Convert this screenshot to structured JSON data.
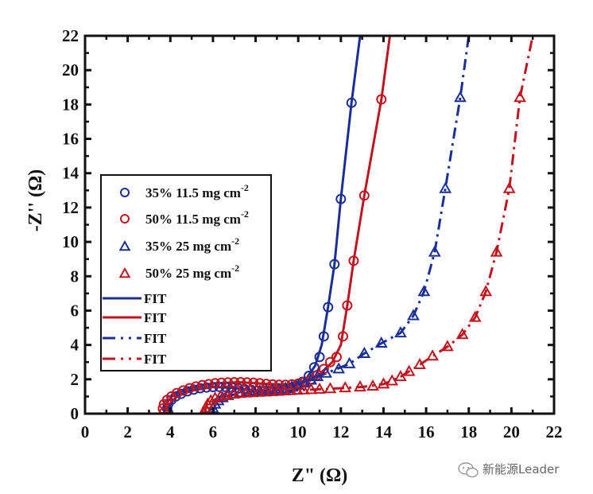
{
  "chart_data": {
    "type": "scatter",
    "title": "",
    "xlabel": "Z\" (Ω)",
    "ylabel": "-Z'' (Ω)",
    "xlim": [
      0,
      22
    ],
    "ylim": [
      0,
      22
    ],
    "xticks": [
      "0",
      "2",
      "4",
      "6",
      "8",
      "10",
      "12",
      "14",
      "16",
      "18",
      "20",
      "22"
    ],
    "yticks": [
      "0",
      "2",
      "4",
      "6",
      "8",
      "10",
      "12",
      "14",
      "16",
      "18",
      "20",
      "22"
    ],
    "grid": false,
    "legend_position": "center-left",
    "series": [
      {
        "name": "35% 11.5 mg cm-2",
        "label_main": "35% 11.5 mg cm",
        "label_sup": "-2",
        "kind": "marker",
        "marker": "circle",
        "color": "#1a2f96",
        "points": [
          [
            3.9,
            0.05
          ],
          [
            3.85,
            0.3
          ],
          [
            3.9,
            0.55
          ],
          [
            4.05,
            0.8
          ],
          [
            4.25,
            1.0
          ],
          [
            4.5,
            1.15
          ],
          [
            4.8,
            1.3
          ],
          [
            5.1,
            1.4
          ],
          [
            5.4,
            1.48
          ],
          [
            5.7,
            1.52
          ],
          [
            6.0,
            1.55
          ],
          [
            6.3,
            1.56
          ],
          [
            6.6,
            1.55
          ],
          [
            6.9,
            1.52
          ],
          [
            7.2,
            1.47
          ],
          [
            7.5,
            1.42
          ],
          [
            7.8,
            1.37
          ],
          [
            8.1,
            1.33
          ],
          [
            8.4,
            1.3
          ],
          [
            8.7,
            1.3
          ],
          [
            9.0,
            1.32
          ],
          [
            9.3,
            1.38
          ],
          [
            9.6,
            1.48
          ],
          [
            9.9,
            1.62
          ],
          [
            10.2,
            1.85
          ],
          [
            10.5,
            2.2
          ],
          [
            10.75,
            2.7
          ],
          [
            11.0,
            3.3
          ],
          [
            11.2,
            4.5
          ],
          [
            11.4,
            6.2
          ],
          [
            11.7,
            8.7
          ],
          [
            12.0,
            12.5
          ],
          [
            12.5,
            18.1
          ]
        ]
      },
      {
        "name": "50% 11.5 mg cm-2",
        "label_main": "50% 11.5 mg cm",
        "label_sup": "-2",
        "kind": "marker",
        "marker": "circle",
        "color": "#c0151f",
        "points": [
          [
            3.7,
            0.05
          ],
          [
            3.65,
            0.3
          ],
          [
            3.7,
            0.55
          ],
          [
            3.85,
            0.8
          ],
          [
            4.05,
            1.0
          ],
          [
            4.3,
            1.2
          ],
          [
            4.6,
            1.35
          ],
          [
            4.9,
            1.48
          ],
          [
            5.2,
            1.58
          ],
          [
            5.5,
            1.66
          ],
          [
            5.8,
            1.72
          ],
          [
            6.1,
            1.77
          ],
          [
            6.4,
            1.8
          ],
          [
            6.7,
            1.82
          ],
          [
            7.0,
            1.83
          ],
          [
            7.3,
            1.83
          ],
          [
            7.6,
            1.82
          ],
          [
            7.9,
            1.8
          ],
          [
            8.2,
            1.77
          ],
          [
            8.5,
            1.73
          ],
          [
            8.8,
            1.7
          ],
          [
            9.1,
            1.68
          ],
          [
            9.4,
            1.68
          ],
          [
            9.7,
            1.7
          ],
          [
            10.0,
            1.75
          ],
          [
            10.3,
            1.85
          ],
          [
            10.6,
            2.0
          ],
          [
            10.9,
            2.25
          ],
          [
            11.2,
            2.6
          ],
          [
            11.5,
            3.0
          ],
          [
            11.8,
            3.3
          ],
          [
            12.1,
            4.5
          ],
          [
            12.3,
            6.3
          ],
          [
            12.6,
            8.9
          ],
          [
            13.1,
            12.7
          ],
          [
            13.9,
            18.3
          ]
        ]
      },
      {
        "name": "35% 25 mg cm-2",
        "label_main": "35% 25 mg cm",
        "label_sup": "-2",
        "kind": "marker",
        "marker": "triangle",
        "color": "#1a2f96",
        "points": [
          [
            5.95,
            0.05
          ],
          [
            6.0,
            0.3
          ],
          [
            6.1,
            0.55
          ],
          [
            6.25,
            0.75
          ],
          [
            6.45,
            0.92
          ],
          [
            6.7,
            1.05
          ],
          [
            7.0,
            1.15
          ],
          [
            7.3,
            1.22
          ],
          [
            7.6,
            1.28
          ],
          [
            7.9,
            1.3
          ],
          [
            8.2,
            1.32
          ],
          [
            8.5,
            1.35
          ],
          [
            8.8,
            1.38
          ],
          [
            9.1,
            1.42
          ],
          [
            9.4,
            1.48
          ],
          [
            9.7,
            1.55
          ],
          [
            10.0,
            1.65
          ],
          [
            10.3,
            1.78
          ],
          [
            10.6,
            1.95
          ],
          [
            10.9,
            2.15
          ],
          [
            11.3,
            2.35
          ],
          [
            11.9,
            2.6
          ],
          [
            12.4,
            2.9
          ],
          [
            13.1,
            3.5
          ],
          [
            13.9,
            4.1
          ],
          [
            14.8,
            4.7
          ],
          [
            15.4,
            5.7
          ],
          [
            15.9,
            7.1
          ],
          [
            16.4,
            9.4
          ],
          [
            16.9,
            13.1
          ],
          [
            17.6,
            18.4
          ]
        ]
      },
      {
        "name": "50% 25 mg cm-2",
        "label_main": "50% 25 mg cm",
        "label_sup": "-2",
        "kind": "marker",
        "marker": "triangle",
        "color": "#c0151f",
        "points": [
          [
            5.6,
            0.05
          ],
          [
            5.65,
            0.3
          ],
          [
            5.75,
            0.55
          ],
          [
            5.9,
            0.75
          ],
          [
            6.1,
            0.9
          ],
          [
            6.35,
            1.0
          ],
          [
            6.65,
            1.08
          ],
          [
            6.95,
            1.14
          ],
          [
            7.25,
            1.18
          ],
          [
            7.55,
            1.2
          ],
          [
            7.85,
            1.22
          ],
          [
            8.15,
            1.24
          ],
          [
            8.45,
            1.26
          ],
          [
            8.75,
            1.28
          ],
          [
            9.05,
            1.3
          ],
          [
            9.35,
            1.32
          ],
          [
            9.65,
            1.34
          ],
          [
            9.95,
            1.36
          ],
          [
            10.25,
            1.38
          ],
          [
            10.6,
            1.4
          ],
          [
            11.0,
            1.42
          ],
          [
            11.5,
            1.45
          ],
          [
            12.2,
            1.5
          ],
          [
            12.9,
            1.55
          ],
          [
            13.5,
            1.6
          ],
          [
            14.0,
            1.72
          ],
          [
            14.4,
            1.9
          ],
          [
            14.8,
            2.15
          ],
          [
            15.2,
            2.45
          ],
          [
            15.7,
            2.85
          ],
          [
            16.3,
            3.35
          ],
          [
            17.0,
            3.9
          ],
          [
            17.7,
            4.6
          ],
          [
            18.3,
            5.6
          ],
          [
            18.8,
            7.1
          ],
          [
            19.3,
            9.4
          ],
          [
            19.9,
            13.1
          ],
          [
            20.4,
            18.4
          ]
        ]
      },
      {
        "name": "FIT",
        "kind": "line",
        "style": "solid",
        "color": "#1a2f96",
        "points": [
          [
            3.9,
            0.0
          ],
          [
            3.95,
            0.5
          ],
          [
            4.3,
            1.0
          ],
          [
            5.0,
            1.35
          ],
          [
            6.0,
            1.55
          ],
          [
            7.0,
            1.5
          ],
          [
            8.0,
            1.35
          ],
          [
            8.8,
            1.3
          ],
          [
            9.6,
            1.48
          ],
          [
            10.3,
            1.9
          ],
          [
            10.8,
            2.8
          ],
          [
            11.1,
            4.0
          ],
          [
            11.4,
            6.2
          ],
          [
            11.7,
            8.7
          ],
          [
            12.0,
            12.5
          ],
          [
            12.5,
            18.1
          ],
          [
            12.9,
            22.0
          ]
        ]
      },
      {
        "name": "FIT",
        "kind": "line",
        "style": "solid",
        "color": "#c0151f",
        "points": [
          [
            3.7,
            0.0
          ],
          [
            3.75,
            0.5
          ],
          [
            4.1,
            1.05
          ],
          [
            4.9,
            1.48
          ],
          [
            6.0,
            1.76
          ],
          [
            7.2,
            1.83
          ],
          [
            8.4,
            1.74
          ],
          [
            9.4,
            1.68
          ],
          [
            10.3,
            1.85
          ],
          [
            11.0,
            2.3
          ],
          [
            11.6,
            3.0
          ],
          [
            12.0,
            4.0
          ],
          [
            12.3,
            6.3
          ],
          [
            12.6,
            8.9
          ],
          [
            13.1,
            12.7
          ],
          [
            13.9,
            18.3
          ],
          [
            14.3,
            22.0
          ]
        ]
      },
      {
        "name": "FIT",
        "kind": "line",
        "style": "dashdot",
        "color": "#1a2f96",
        "points": [
          [
            6.0,
            0.0
          ],
          [
            6.1,
            0.5
          ],
          [
            6.6,
            1.0
          ],
          [
            7.5,
            1.25
          ],
          [
            8.5,
            1.35
          ],
          [
            9.5,
            1.5
          ],
          [
            10.5,
            1.9
          ],
          [
            11.3,
            2.35
          ],
          [
            12.4,
            2.9
          ],
          [
            13.1,
            3.5
          ],
          [
            13.9,
            4.1
          ],
          [
            14.8,
            4.7
          ],
          [
            15.4,
            5.7
          ],
          [
            15.9,
            7.1
          ],
          [
            16.4,
            9.4
          ],
          [
            16.9,
            13.1
          ],
          [
            17.6,
            18.4
          ],
          [
            18.0,
            22.0
          ]
        ]
      },
      {
        "name": "FIT",
        "kind": "line",
        "style": "dashdot",
        "color": "#c0151f",
        "points": [
          [
            5.6,
            0.0
          ],
          [
            5.7,
            0.5
          ],
          [
            6.2,
            0.95
          ],
          [
            7.2,
            1.17
          ],
          [
            8.5,
            1.26
          ],
          [
            10.0,
            1.36
          ],
          [
            11.5,
            1.45
          ],
          [
            13.0,
            1.55
          ],
          [
            14.0,
            1.72
          ],
          [
            14.8,
            2.15
          ],
          [
            15.7,
            2.85
          ],
          [
            16.3,
            3.35
          ],
          [
            17.0,
            3.9
          ],
          [
            17.7,
            4.6
          ],
          [
            18.3,
            5.6
          ],
          [
            18.8,
            7.1
          ],
          [
            19.3,
            9.4
          ],
          [
            19.9,
            13.1
          ],
          [
            20.4,
            18.4
          ],
          [
            21.0,
            22.0
          ]
        ]
      }
    ]
  },
  "watermark": {
    "text": "新能源Leader",
    "icon": "wechat-icon"
  }
}
